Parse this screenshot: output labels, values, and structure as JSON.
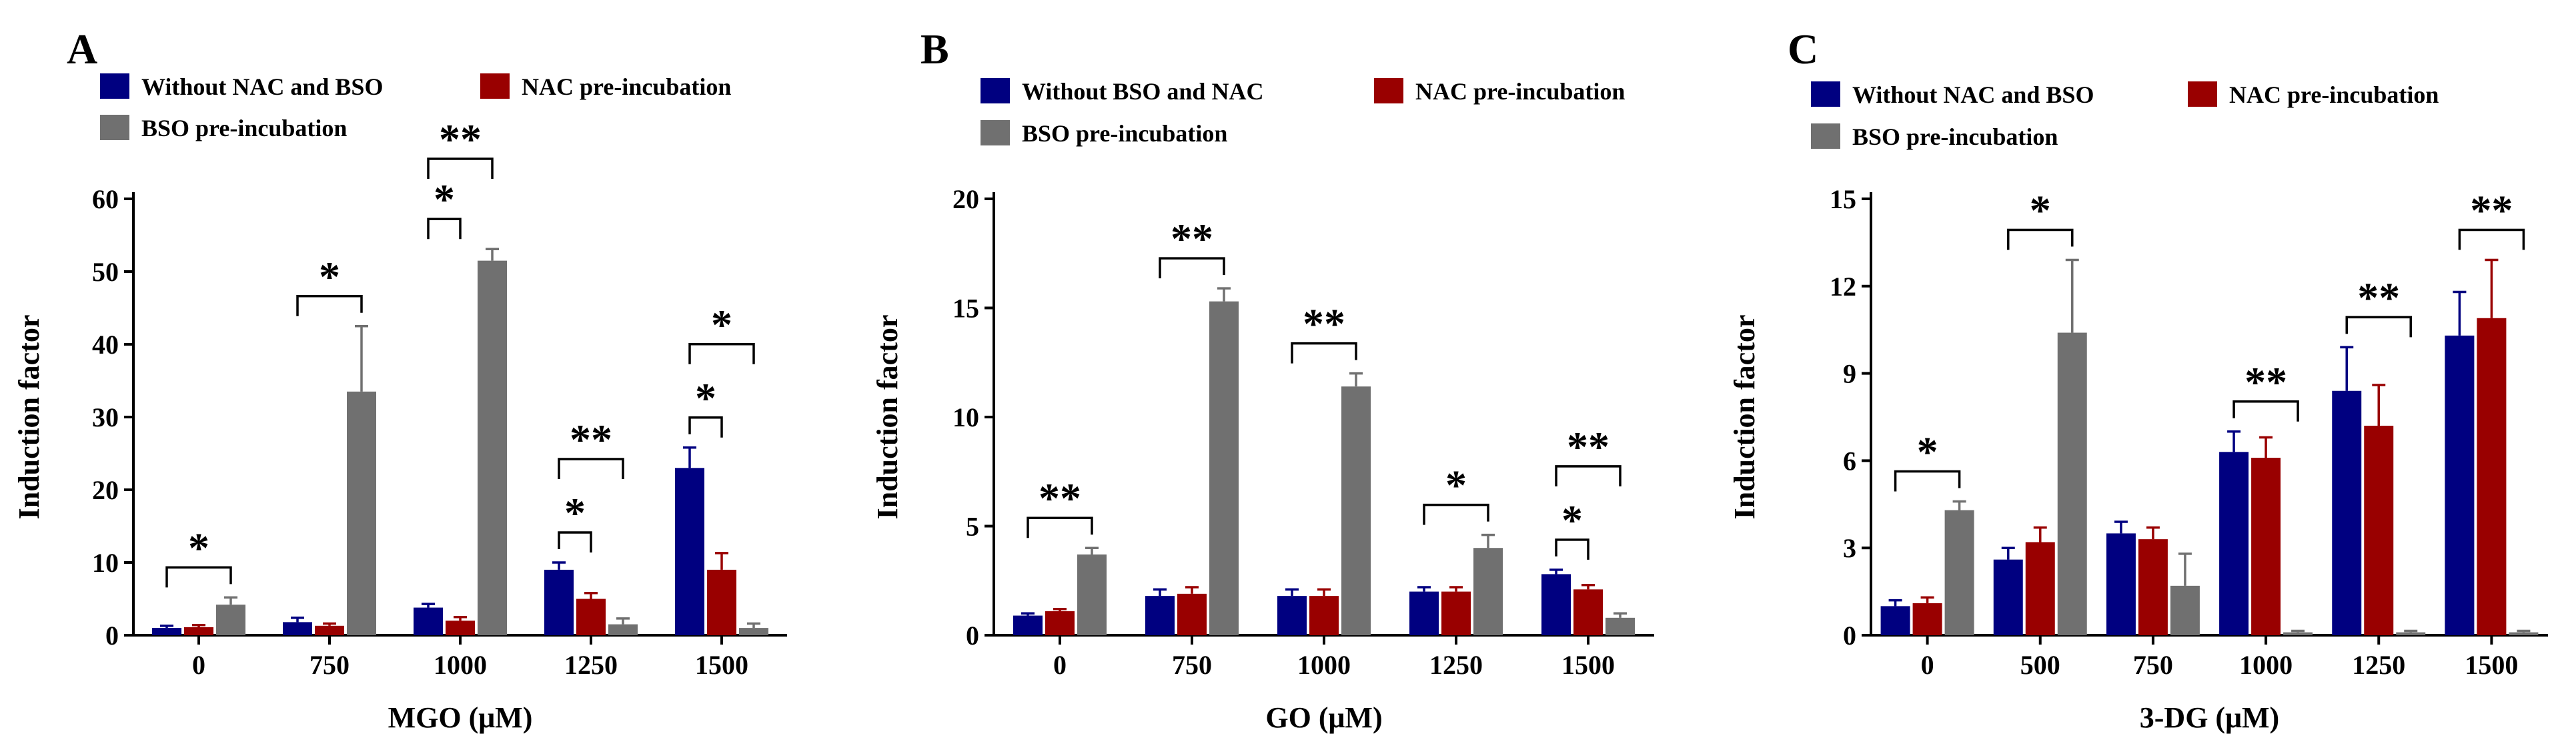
{
  "colors": {
    "blue": "#000080",
    "red": "#990000",
    "gray": "#707070"
  },
  "chart_data": [
    {
      "type": "bar",
      "panel_label": "A",
      "xlabel": "MGO (μM)",
      "ylabel": "Induction factor",
      "ylim": [
        0,
        60
      ],
      "yticks": [
        "0",
        "10",
        "20",
        "30",
        "40",
        "50",
        "60"
      ],
      "categories": [
        "0",
        "750",
        "1000",
        "1250",
        "1500"
      ],
      "series": [
        {
          "name": "Without NAC and BSO",
          "color_key": "blue",
          "values": [
            1.0,
            1.8,
            3.8,
            9.0,
            23.0
          ],
          "errors": [
            0.3,
            0.6,
            0.5,
            1.0,
            2.8
          ]
        },
        {
          "name": "NAC pre-incubation",
          "color_key": "red",
          "values": [
            1.1,
            1.3,
            2.0,
            5.0,
            9.0
          ],
          "errors": [
            0.3,
            0.3,
            0.5,
            0.8,
            2.3
          ]
        },
        {
          "name": "BSO pre-incubation",
          "color_key": "gray",
          "values": [
            4.2,
            33.5,
            51.5,
            1.5,
            1.0
          ],
          "errors": [
            1.0,
            9.0,
            1.6,
            0.8,
            0.6
          ]
        }
      ],
      "significance": [
        {
          "category": 0,
          "from": 0,
          "to": 2,
          "label": "*",
          "level": 0
        },
        {
          "category": 1,
          "from": 0,
          "to": 2,
          "label": "*",
          "level": 0
        },
        {
          "category": 2,
          "from": 0,
          "to": 1,
          "label": "*",
          "level": 0
        },
        {
          "category": 2,
          "from": 0,
          "to": 2,
          "label": "**",
          "level": 1
        },
        {
          "category": 3,
          "from": 0,
          "to": 1,
          "label": "*",
          "level": 0
        },
        {
          "category": 3,
          "from": 0,
          "to": 2,
          "label": "**",
          "level": 1
        },
        {
          "category": 4,
          "from": 0,
          "to": 1,
          "label": "*",
          "level": 0
        },
        {
          "category": 4,
          "from": 0,
          "to": 2,
          "label": "*",
          "level": 1
        }
      ]
    },
    {
      "type": "bar",
      "panel_label": "B",
      "xlabel": "GO (μM)",
      "ylabel": "Induction factor",
      "ylim": [
        0,
        20
      ],
      "yticks": [
        "0",
        "5",
        "10",
        "15",
        "20"
      ],
      "categories": [
        "0",
        "750",
        "1000",
        "1250",
        "1500"
      ],
      "series": [
        {
          "name": "Without BSO and NAC",
          "color_key": "blue",
          "values": [
            0.9,
            1.8,
            1.8,
            2.0,
            2.8
          ],
          "errors": [
            0.1,
            0.3,
            0.3,
            0.2,
            0.2
          ]
        },
        {
          "name": "NAC pre-incubation",
          "color_key": "red",
          "values": [
            1.1,
            1.9,
            1.8,
            2.0,
            2.1
          ],
          "errors": [
            0.1,
            0.3,
            0.3,
            0.2,
            0.2
          ]
        },
        {
          "name": "BSO pre-incubation",
          "color_key": "gray",
          "values": [
            3.7,
            15.3,
            11.4,
            4.0,
            0.8
          ],
          "errors": [
            0.3,
            0.6,
            0.6,
            0.6,
            0.2
          ]
        }
      ],
      "significance": [
        {
          "category": 0,
          "from": 0,
          "to": 2,
          "label": "**",
          "level": 0
        },
        {
          "category": 1,
          "from": 0,
          "to": 2,
          "label": "**",
          "level": 0
        },
        {
          "category": 2,
          "from": 0,
          "to": 2,
          "label": "**",
          "level": 0
        },
        {
          "category": 3,
          "from": 0,
          "to": 2,
          "label": "*",
          "level": 0
        },
        {
          "category": 4,
          "from": 0,
          "to": 1,
          "label": "*",
          "level": 0
        },
        {
          "category": 4,
          "from": 0,
          "to": 2,
          "label": "**",
          "level": 1
        }
      ]
    },
    {
      "type": "bar",
      "panel_label": "C",
      "xlabel": "3-DG (μM)",
      "ylabel": "Induction factor",
      "ylim": [
        0,
        15
      ],
      "yticks": [
        "0",
        "3",
        "6",
        "9",
        "12",
        "15"
      ],
      "categories": [
        "0",
        "500",
        "750",
        "1000",
        "1250",
        "1500"
      ],
      "series": [
        {
          "name": "Without NAC and BSO",
          "color_key": "blue",
          "values": [
            1.0,
            2.6,
            3.5,
            6.3,
            8.4,
            10.3
          ],
          "errors": [
            0.2,
            0.4,
            0.4,
            0.7,
            1.5,
            1.5
          ]
        },
        {
          "name": "NAC pre-incubation",
          "color_key": "red",
          "values": [
            1.1,
            3.2,
            3.3,
            6.1,
            7.2,
            10.9
          ],
          "errors": [
            0.2,
            0.5,
            0.4,
            0.7,
            1.4,
            2.0
          ]
        },
        {
          "name": "BSO pre-incubation",
          "color_key": "gray",
          "values": [
            4.3,
            10.4,
            1.7,
            0.1,
            0.1,
            0.1
          ],
          "errors": [
            0.3,
            2.5,
            1.1,
            0.05,
            0.05,
            0.05
          ]
        }
      ],
      "significance": [
        {
          "category": 0,
          "from": 0,
          "to": 2,
          "label": "*",
          "level": 0
        },
        {
          "category": 1,
          "from": 0,
          "to": 2,
          "label": "*",
          "level": 0
        },
        {
          "category": 3,
          "from": 0,
          "to": 2,
          "label": "**",
          "level": 0
        },
        {
          "category": 4,
          "from": 0,
          "to": 2,
          "label": "**",
          "level": 0
        },
        {
          "category": 5,
          "from": 0,
          "to": 2,
          "label": "**",
          "level": 0
        }
      ]
    }
  ]
}
